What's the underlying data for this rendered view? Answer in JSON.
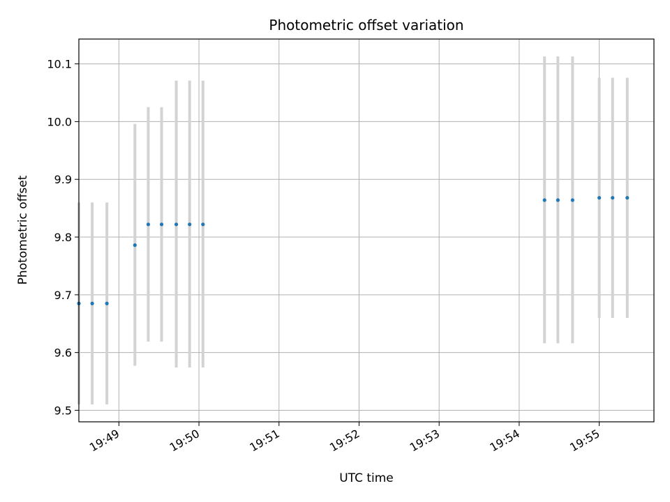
{
  "chart_data": {
    "type": "scatter",
    "title": "Photometric offset variation",
    "xlabel": "UTC time",
    "ylabel": "Photometric offset",
    "grid": true,
    "x_unit": "UTC time (HH:MM:SS)",
    "xlim": [
      "19:48:30",
      "19:55:41"
    ],
    "ylim": [
      9.48,
      10.143
    ],
    "x_ticks": [
      "19:49",
      "19:50",
      "19:51",
      "19:52",
      "19:53",
      "19:54",
      "19:55"
    ],
    "y_ticks": [
      9.5,
      9.6,
      9.7,
      9.8,
      9.9,
      10.0,
      10.1
    ],
    "point_color": "#1f77b4",
    "errorbar_color": "#d3d3d3",
    "points": [
      {
        "x": "19:48:30",
        "y": 9.685,
        "low": 9.51,
        "high": 9.86
      },
      {
        "x": "19:48:40",
        "y": 9.685,
        "low": 9.51,
        "high": 9.86
      },
      {
        "x": "19:48:51",
        "y": 9.685,
        "low": 9.51,
        "high": 9.86
      },
      {
        "x": "19:49:12",
        "y": 9.786,
        "low": 9.577,
        "high": 9.996
      },
      {
        "x": "19:49:22",
        "y": 9.822,
        "low": 9.619,
        "high": 10.025
      },
      {
        "x": "19:49:32",
        "y": 9.822,
        "low": 9.619,
        "high": 10.025
      },
      {
        "x": "19:49:43",
        "y": 9.822,
        "low": 9.574,
        "high": 10.071
      },
      {
        "x": "19:49:53",
        "y": 9.822,
        "low": 9.574,
        "high": 10.071
      },
      {
        "x": "19:50:03",
        "y": 9.822,
        "low": 9.574,
        "high": 10.071
      },
      {
        "x": "19:54:19",
        "y": 9.864,
        "low": 9.616,
        "high": 10.113
      },
      {
        "x": "19:54:29",
        "y": 9.864,
        "low": 9.616,
        "high": 10.113
      },
      {
        "x": "19:54:40",
        "y": 9.864,
        "low": 9.616,
        "high": 10.113
      },
      {
        "x": "19:55:00",
        "y": 9.868,
        "low": 9.66,
        "high": 10.076
      },
      {
        "x": "19:55:10",
        "y": 9.868,
        "low": 9.66,
        "high": 10.076
      },
      {
        "x": "19:55:21",
        "y": 9.868,
        "low": 9.66,
        "high": 10.076
      }
    ]
  }
}
